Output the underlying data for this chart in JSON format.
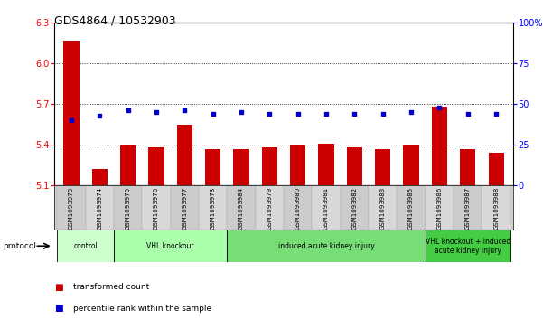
{
  "title": "GDS4864 / 10532903",
  "samples": [
    "GSM1093973",
    "GSM1093974",
    "GSM1093975",
    "GSM1093976",
    "GSM1093977",
    "GSM1093978",
    "GSM1093984",
    "GSM1093979",
    "GSM1093980",
    "GSM1093981",
    "GSM1093982",
    "GSM1093983",
    "GSM1093985",
    "GSM1093986",
    "GSM1093987",
    "GSM1093988"
  ],
  "bar_values": [
    6.17,
    5.22,
    5.4,
    5.38,
    5.55,
    5.37,
    5.37,
    5.38,
    5.4,
    5.41,
    5.38,
    5.37,
    5.4,
    5.68,
    5.37,
    5.34
  ],
  "percentile_values": [
    40,
    43,
    46,
    45,
    46,
    44,
    45,
    44,
    44,
    44,
    44,
    44,
    45,
    48,
    44,
    44
  ],
  "bar_color": "#cc0000",
  "dot_color": "#0000cc",
  "ylim_left": [
    5.1,
    6.3
  ],
  "ylim_right": [
    0,
    100
  ],
  "yticks_left": [
    5.1,
    5.4,
    5.7,
    6.0,
    6.3
  ],
  "yticks_right": [
    0,
    25,
    50,
    75,
    100
  ],
  "grid_values": [
    6.0,
    5.7,
    5.4
  ],
  "groups": [
    {
      "label": "control",
      "start": 0,
      "end": 2,
      "color": "#ccffcc"
    },
    {
      "label": "VHL knockout",
      "start": 2,
      "end": 6,
      "color": "#aaffaa"
    },
    {
      "label": "induced acute kidney injury",
      "start": 6,
      "end": 13,
      "color": "#77dd77"
    },
    {
      "label": "VHL knockout + induced\nacute kidney injury",
      "start": 13,
      "end": 16,
      "color": "#44cc44"
    }
  ],
  "protocol_label": "protocol",
  "legend_items": [
    {
      "label": "transformed count",
      "color": "#cc0000"
    },
    {
      "label": "percentile rank within the sample",
      "color": "#0000cc"
    }
  ],
  "background_color": "#ffffff",
  "plot_bg": "#ffffff"
}
